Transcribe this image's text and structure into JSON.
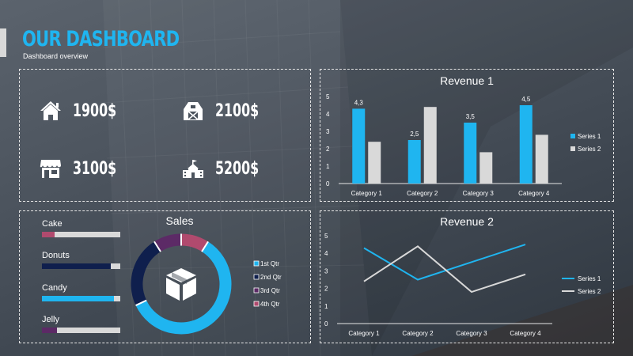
{
  "header": {
    "title": "OUR DASHBOARD",
    "subtitle": "Dashboard overview"
  },
  "kpis": [
    {
      "icon": "house-icon",
      "value": "1900$"
    },
    {
      "icon": "barn-icon",
      "value": "2100$"
    },
    {
      "icon": "store-icon",
      "value": "3100$"
    },
    {
      "icon": "school-icon",
      "value": "5200$"
    }
  ],
  "progress": {
    "items": [
      {
        "label": "Cake",
        "fraction": 0.16,
        "color": "#b04a6e"
      },
      {
        "label": "Donuts",
        "fraction": 0.88,
        "color": "#0f1f4d"
      },
      {
        "label": "Candy",
        "fraction": 0.92,
        "color": "#1fb5f0"
      },
      {
        "label": "Jelly",
        "fraction": 0.19,
        "color": "#5c2a66"
      }
    ]
  },
  "colors": {
    "accent": "#1fb5f0",
    "series2": "#d9d9d9",
    "dark_navy": "#0f1f4d"
  },
  "chart_data": [
    {
      "type": "bar",
      "title": "Revenue 1",
      "categories": [
        "Category 1",
        "Category 2",
        "Category 3",
        "Category 4"
      ],
      "series": [
        {
          "name": "Series 1",
          "values": [
            4.3,
            2.5,
            3.5,
            4.5
          ],
          "color": "#1fb5f0"
        },
        {
          "name": "Series 2",
          "values": [
            2.4,
            4.4,
            1.8,
            2.8
          ],
          "color": "#d9d9d9"
        }
      ],
      "data_labels": [
        "4,3",
        "2,5",
        "3,5",
        "4,5"
      ],
      "yticks": [
        "0",
        "1",
        "2",
        "3",
        "4",
        "5"
      ],
      "ylim": [
        0,
        5
      ],
      "legend": "right",
      "grid": false
    },
    {
      "type": "pie",
      "title": "Sales",
      "categories": [
        "1st Qtr",
        "2nd Qtr",
        "3rd Qtr",
        "4th Qtr"
      ],
      "values": [
        59,
        23,
        9,
        9
      ],
      "colors": [
        "#1fb5f0",
        "#0f1f4d",
        "#5c2a66",
        "#b04a6e"
      ],
      "legend": "right",
      "center_icon": "box-icon"
    },
    {
      "type": "line",
      "title": "Revenue 2",
      "categories": [
        "Category 1",
        "Category 2",
        "Category 3",
        "Category 4"
      ],
      "series": [
        {
          "name": "Series 1",
          "values": [
            4.3,
            2.5,
            3.5,
            4.5
          ],
          "color": "#1fb5f0"
        },
        {
          "name": "Series 2",
          "values": [
            2.4,
            4.4,
            1.8,
            2.8
          ],
          "color": "#d9d9d9"
        }
      ],
      "yticks": [
        "0",
        "1",
        "2",
        "3",
        "4",
        "5"
      ],
      "ylim": [
        0,
        5
      ],
      "legend": "right",
      "grid": false
    }
  ]
}
